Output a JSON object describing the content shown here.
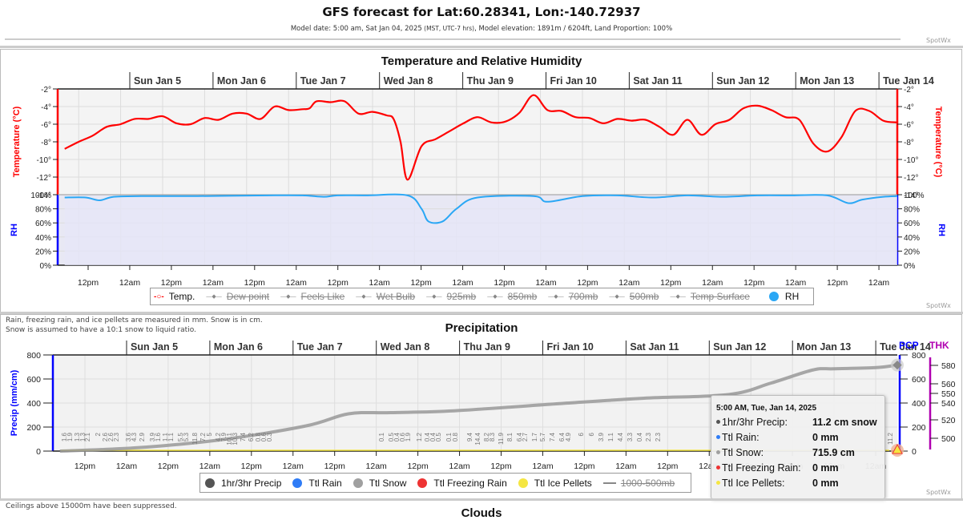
{
  "header": {
    "title": "GFS forecast for Lat:60.28341, Lon:-140.72937",
    "subtitle_prefix": "Model date: 5:00 am, Sat Jan 04, 2025",
    "subtitle_tz": " (MST, UTC-7 hrs)",
    "subtitle_suffix": ", Model elevation: 1891m / 6204ft, Land Proportion: 100%"
  },
  "brand": "SpotWx",
  "colors": {
    "temp": "#ff0000",
    "rh": "#2aa7f5",
    "rh_axis": "#0000ff",
    "snow": "#a0a0a0",
    "thk": "#b000b0",
    "precip_axis": "#0000ff"
  },
  "temp_panel": {
    "title": "Temperature and Relative Humidity",
    "days": [
      "Sun Jan 5",
      "Mon Jan 6",
      "Tue Jan 7",
      "Wed Jan 8",
      "Thu Jan 9",
      "Fri Jan 10",
      "Sat Jan 11",
      "Sun Jan 12",
      "Mon Jan 13",
      "Tue Jan 14"
    ],
    "x_ticks": [
      "12pm",
      "12am",
      "12pm",
      "12am",
      "12pm",
      "12am",
      "12pm",
      "12am",
      "12pm",
      "12am",
      "12pm",
      "12am",
      "12pm",
      "12am",
      "12pm",
      "12am",
      "12pm",
      "12am",
      "12pm",
      "12am"
    ],
    "legend": [
      {
        "label": "Temp.",
        "active": true,
        "icon": "circle-line-icon"
      },
      {
        "label": "Dew point",
        "active": false,
        "icon": "diamond-line-icon"
      },
      {
        "label": "Feels Like",
        "active": false,
        "icon": "square-line-icon"
      },
      {
        "label": "Wet Bulb",
        "active": false,
        "icon": "triangle-line-icon"
      },
      {
        "label": "925mb",
        "active": false,
        "icon": "triangle-down-line-icon"
      },
      {
        "label": "850mb",
        "active": false,
        "icon": "circle-line-icon"
      },
      {
        "label": "700mb",
        "active": false,
        "icon": "diamond-line-icon"
      },
      {
        "label": "500mb",
        "active": false,
        "icon": "square-line-icon"
      },
      {
        "label": "Temp Surface",
        "active": false,
        "icon": "triangle-line-icon"
      },
      {
        "label": "RH",
        "active": true,
        "icon": "circle-icon"
      }
    ]
  },
  "precip_panel": {
    "note_line1": "Rain, freezing rain, and ice pellets are measured in mm. Snow is in cm.",
    "note_line2": "Snow is assumed to have a 10:1 snow to liquid ratio.",
    "title": "Precipitation",
    "thk_label": "THK",
    "pcp_label": "PCP",
    "days": [
      "Sun Jan 5",
      "Mon Jan 6",
      "Tue Jan 7",
      "Wed Jan 8",
      "Thu Jan 9",
      "Fri Jan 10",
      "Sat Jan 11",
      "Sun Jan 12",
      "Mon Jan 13",
      "Tue Jan 14"
    ],
    "x_ticks": [
      "12pm",
      "12am",
      "12pm",
      "12am",
      "12pm",
      "12am",
      "12pm",
      "12am",
      "12pm",
      "12am",
      "12pm",
      "12am",
      "12pm",
      "12am",
      "12pm",
      "12am",
      "12pm",
      "12am",
      "12pm",
      "12am"
    ],
    "legend": [
      {
        "label": "1hr/3hr Precip",
        "color": "#555555",
        "active": true
      },
      {
        "label": "Ttl Rain",
        "color": "#2f7cf6",
        "active": true
      },
      {
        "label": "Ttl Snow",
        "color": "#a0a0a0",
        "active": true
      },
      {
        "label": "Ttl Freezing Rain",
        "color": "#ee3333",
        "active": true
      },
      {
        "label": "Ttl Ice Pellets",
        "color": "#f5e642",
        "active": true
      },
      {
        "label": "1000-500mb",
        "color": "#888888",
        "active": false
      }
    ],
    "tooltip": {
      "title": "5:00 AM, Tue, Jan 14, 2025",
      "rows": [
        {
          "k": "1hr/3hr Precip:",
          "v": "11.2 cm snow",
          "c": "#555555"
        },
        {
          "k": "Ttl Rain:",
          "v": "0 mm",
          "c": "#2f7cf6"
        },
        {
          "k": "Ttl Snow:",
          "v": "715.9 cm",
          "c": "#a0a0a0"
        },
        {
          "k": "Ttl Freezing Rain:",
          "v": "0 mm",
          "c": "#ee3333"
        },
        {
          "k": "Ttl Ice Pellets:",
          "v": "0 mm",
          "c": "#f5e642"
        }
      ]
    }
  },
  "footer_note": "Ceilings above 15000m have been suppressed.",
  "next_title": "Clouds",
  "chart_data": [
    {
      "type": "line",
      "title": "Temperature and Relative Humidity",
      "xlabel": "",
      "ylabel": "Temperature (°C)",
      "ylabel_right": "Temperature (°C)",
      "ylim": [
        -14,
        -2
      ],
      "y_ticks": [
        "-2°",
        "-4°",
        "-6°",
        "-8°",
        "-10°",
        "-12°",
        "-14°"
      ],
      "x_hours_range": [
        0,
        240
      ],
      "grid": true,
      "legend_position": "bottom",
      "series": [
        {
          "name": "Temp.",
          "x_hours": [
            2,
            6,
            10,
            14,
            18,
            22,
            26,
            30,
            34,
            38,
            42,
            46,
            50,
            54,
            58,
            62,
            66,
            70,
            72,
            74,
            78,
            82,
            86,
            90,
            94,
            96,
            98,
            100,
            104,
            108,
            112,
            116,
            120,
            124,
            128,
            132,
            136,
            140,
            144,
            148,
            152,
            156,
            160,
            164,
            168,
            172,
            176,
            180,
            184,
            188,
            192,
            196,
            200,
            204,
            208,
            212,
            216,
            220,
            224,
            228,
            232,
            236,
            240
          ],
          "values": [
            -8.8,
            -8.0,
            -7.3,
            -6.3,
            -6.0,
            -5.4,
            -5.4,
            -5.1,
            -5.9,
            -6.0,
            -5.3,
            -5.5,
            -4.8,
            -4.8,
            -5.4,
            -4.0,
            -4.4,
            -4.3,
            -4.2,
            -3.4,
            -3.5,
            -3.4,
            -4.8,
            -4.6,
            -5.0,
            -5.4,
            -8.0,
            -12.3,
            -8.5,
            -7.7,
            -6.8,
            -5.9,
            -5.2,
            -5.8,
            -5.7,
            -4.7,
            -2.7,
            -4.4,
            -4.5,
            -5.2,
            -5.3,
            -5.9,
            -5.4,
            -5.6,
            -5.5,
            -6.3,
            -7.2,
            -5.5,
            -7.2,
            -6.0,
            -5.5,
            -4.2,
            -3.9,
            -4.4,
            -5.2,
            -5.5,
            -8.2,
            -9.1,
            -7.5,
            -4.5,
            -4.5,
            -5.6,
            -5.8
          ]
        }
      ]
    },
    {
      "type": "area",
      "title": "Relative Humidity",
      "ylabel": "RH",
      "ylim": [
        0,
        100
      ],
      "y_ticks": [
        "100%",
        "80%",
        "60%",
        "40%",
        "20%",
        "0%"
      ],
      "series": [
        {
          "name": "RH",
          "x_hours": [
            2,
            8,
            12,
            16,
            24,
            40,
            60,
            70,
            76,
            80,
            88,
            100,
            104,
            106,
            110,
            114,
            120,
            136,
            140,
            150,
            160,
            170,
            180,
            190,
            200,
            210,
            220,
            226,
            230,
            236,
            240
          ],
          "values": [
            96,
            96,
            92,
            97,
            98,
            98,
            99,
            99,
            97,
            99,
            99,
            99,
            80,
            62,
            62,
            80,
            96,
            98,
            90,
            98,
            99,
            96,
            99,
            97,
            99,
            99,
            99,
            88,
            93,
            97,
            98
          ]
        }
      ]
    },
    {
      "type": "line",
      "title": "Precipitation",
      "ylabel": "Precip (mm/cm)",
      "ylim": [
        0,
        800
      ],
      "y_ticks": [
        "800",
        "600",
        "400",
        "200",
        "0"
      ],
      "thk_ticks": [
        "580",
        "560",
        "550",
        "540",
        "520",
        "500"
      ],
      "grid": true,
      "legend_position": "bottom",
      "series": [
        {
          "name": "Ttl Snow",
          "x_hours": [
            2,
            24,
            48,
            72,
            84,
            96,
            114,
            144,
            168,
            192,
            204,
            216,
            222,
            234,
            240
          ],
          "values": [
            0,
            28,
            95,
            210,
            310,
            320,
            335,
            395,
            440,
            470,
            565,
            675,
            685,
            695,
            715.9
          ]
        },
        {
          "name": "1hr/3hr Precip labels",
          "values": [
            "1.6",
            "1.9",
            "1.3",
            "1.3",
            "2.1",
            "2",
            "2.6",
            "2.6",
            "2.3",
            "3.6",
            "4.3",
            "2.9",
            "3.9",
            "1.6",
            "1.1",
            "1.1",
            "5.5",
            "5.3",
            "11.8",
            "7.2",
            "5",
            "4.2",
            "7.9",
            "10.1",
            "10.3",
            "7.4",
            "6.2",
            "0.8",
            "0.6",
            "0.3",
            "0.1",
            "0.5",
            "0.4",
            "0.6",
            "1.9",
            "1.2",
            "0.4",
            "0.4",
            "0.5",
            "0.1",
            "0.8",
            "9.4",
            "14.4",
            "8.2",
            "8.3",
            "11.9",
            "8.1",
            "6.4",
            "2.7",
            "1.7",
            "5.7",
            "7.4",
            "6.4",
            "4.9",
            "6",
            "6",
            "3.9",
            "1.1",
            "4.4",
            "3.3",
            "0.4",
            "2.3",
            "2.3",
            "11.2"
          ]
        }
      ]
    }
  ]
}
